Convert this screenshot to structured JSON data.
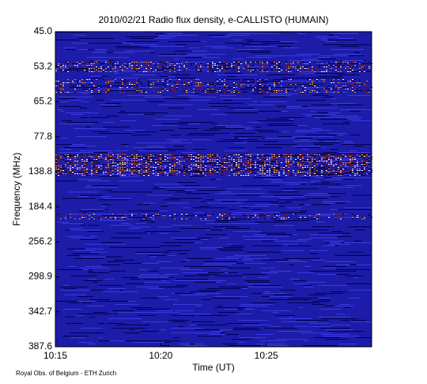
{
  "chart_data": {
    "type": "spectrogram",
    "title": "2010/02/21  Radio flux density, e-CALLISTO (HUMAIN)",
    "x_label": "Time (UT)",
    "y_label": "Frequency (MHz)",
    "footer": "Royal Obs. of Belgium - ETH Zurich",
    "xlim": [
      "10:15",
      "10:30"
    ],
    "xticks": [
      "10:15",
      "10:20",
      "10:25"
    ],
    "y_categories": [
      "45.0",
      "53.2",
      "65.2",
      "77.8",
      "138.8",
      "184.4",
      "256.2",
      "298.9",
      "342.7",
      "387.6"
    ]
  }
}
